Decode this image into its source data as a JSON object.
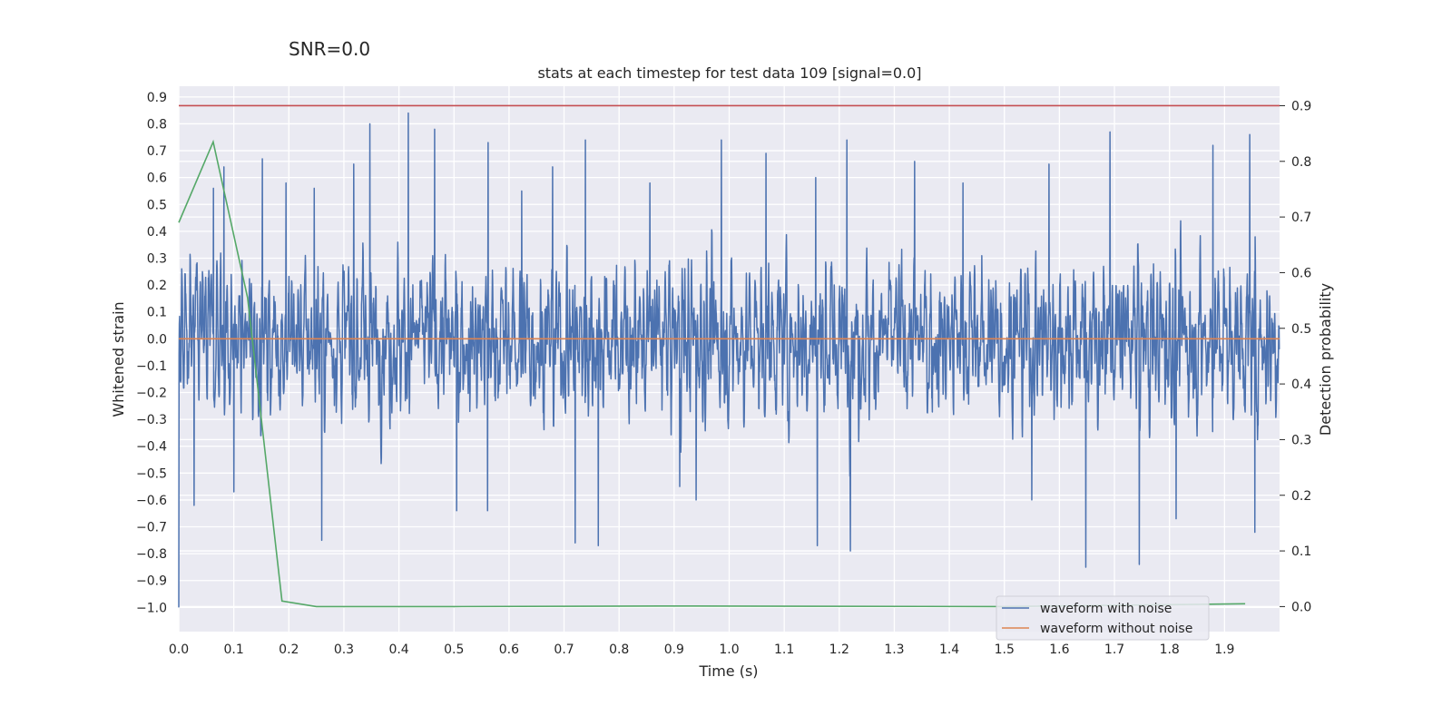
{
  "chart_data": {
    "type": "line",
    "suptitle": "SNR=0.0",
    "title": "stats at each timestep for test data 109 [signal=0.0]",
    "xlabel": "Time (s)",
    "ylabel": "Whitened strain",
    "y2label": "Detection probability",
    "xlim": [
      0.0,
      2.0
    ],
    "ylim": [
      -1.09,
      0.94
    ],
    "y2lim": [
      -0.045,
      0.935
    ],
    "xticks": [
      0.0,
      0.1,
      0.2,
      0.3,
      0.4,
      0.5,
      0.6,
      0.7,
      0.8,
      0.9,
      1.0,
      1.1,
      1.2,
      1.3,
      1.4,
      1.5,
      1.6,
      1.7,
      1.8,
      1.9
    ],
    "yticks": [
      0.9,
      0.8,
      0.7,
      0.6,
      0.5,
      0.4,
      0.3,
      0.2,
      0.1,
      0.0,
      -0.1,
      -0.2,
      -0.3,
      -0.4,
      -0.5,
      -0.6,
      -0.7,
      -0.8,
      -0.9,
      -1.0
    ],
    "y2ticks": [
      0.9,
      0.8,
      0.7,
      0.6,
      0.5,
      0.4,
      0.3,
      0.2,
      0.1,
      0.0
    ],
    "grid": true,
    "legend_position": "lower-right",
    "series": [
      {
        "name": "waveform with noise",
        "axis": "left",
        "color": "#4c72b0",
        "sample_rate": 2048,
        "x_start": 0.0,
        "x_end": 2.0,
        "envelope": {
          "min": -1.0,
          "max": 0.84
        },
        "peaks": [
          [
            0.063,
            0.56
          ],
          [
            0.082,
            0.64
          ],
          [
            0.152,
            0.67
          ],
          [
            0.195,
            0.58
          ],
          [
            0.246,
            0.56
          ],
          [
            0.318,
            0.65
          ],
          [
            0.347,
            0.8
          ],
          [
            0.417,
            0.84
          ],
          [
            0.465,
            0.78
          ],
          [
            0.562,
            0.73
          ],
          [
            0.623,
            0.55
          ],
          [
            0.679,
            0.64
          ],
          [
            0.739,
            0.74
          ],
          [
            0.856,
            0.58
          ],
          [
            0.986,
            0.74
          ],
          [
            1.067,
            0.69
          ],
          [
            1.157,
            0.6
          ],
          [
            1.214,
            0.74
          ],
          [
            1.337,
            0.66
          ],
          [
            1.425,
            0.58
          ],
          [
            1.581,
            0.65
          ],
          [
            1.692,
            0.77
          ],
          [
            1.879,
            0.72
          ],
          [
            1.946,
            0.76
          ]
        ],
        "troughs": [
          [
            0.0,
            -1.0
          ],
          [
            0.028,
            -0.62
          ],
          [
            0.1,
            -0.57
          ],
          [
            0.26,
            -0.75
          ],
          [
            0.505,
            -0.64
          ],
          [
            0.561,
            -0.64
          ],
          [
            0.72,
            -0.76
          ],
          [
            0.762,
            -0.77
          ],
          [
            0.91,
            -0.55
          ],
          [
            0.94,
            -0.6
          ],
          [
            1.16,
            -0.77
          ],
          [
            1.22,
            -0.79
          ],
          [
            1.55,
            -0.6
          ],
          [
            1.648,
            -0.85
          ],
          [
            1.745,
            -0.84
          ],
          [
            1.812,
            -0.67
          ],
          [
            1.955,
            -0.72
          ]
        ]
      },
      {
        "name": "waveform without noise",
        "axis": "left",
        "color": "#dd8452",
        "x": [
          0.0,
          2.0
        ],
        "y": [
          0.0,
          0.0
        ]
      },
      {
        "name": "",
        "axis": "right",
        "color": "#55a868",
        "x": [
          0.0,
          0.0625,
          0.125,
          0.1875,
          0.25,
          0.5,
          0.875,
          1.5,
          1.9375
        ],
        "y": [
          0.69,
          0.835,
          0.555,
          0.01,
          0.0,
          0.0,
          0.001,
          0.0,
          0.005
        ]
      },
      {
        "name": "",
        "axis": "right",
        "color": "#c44e52",
        "x": [
          0.0,
          2.0
        ],
        "y": [
          0.9,
          0.9
        ]
      }
    ]
  }
}
